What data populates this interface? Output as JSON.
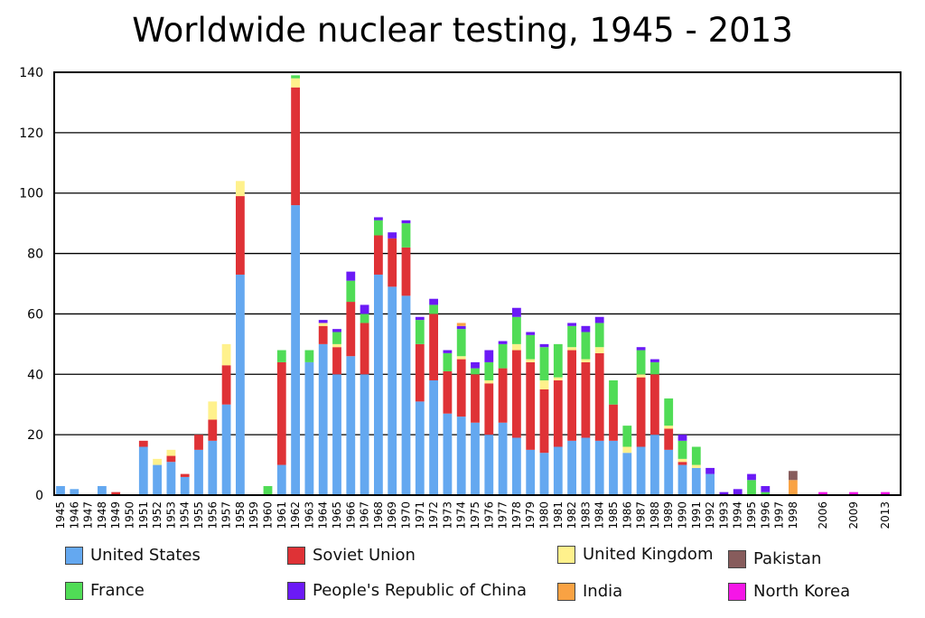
{
  "chart_data": {
    "type": "bar",
    "stacked": true,
    "title": "Worldwide nuclear testing, 1945 - 2013",
    "xlabel": "",
    "ylabel": "",
    "ylim": [
      0,
      140
    ],
    "yticks": [
      0,
      20,
      40,
      60,
      80,
      100,
      120,
      140
    ],
    "grid": true,
    "legend_position": "bottom",
    "categories": [
      "1945",
      "1946",
      "1947",
      "1948",
      "1949",
      "1950",
      "1951",
      "1952",
      "1953",
      "1954",
      "1955",
      "1956",
      "1957",
      "1958",
      "1959",
      "1960",
      "1961",
      "1962",
      "1963",
      "1964",
      "1965",
      "1966",
      "1967",
      "1968",
      "1969",
      "1970",
      "1971",
      "1972",
      "1973",
      "1974",
      "1975",
      "1976",
      "1977",
      "1978",
      "1979",
      "1980",
      "1981",
      "1982",
      "1983",
      "1984",
      "1985",
      "1986",
      "1987",
      "1988",
      "1989",
      "1990",
      "1991",
      "1992",
      "1993",
      "1994",
      "1995",
      "1996",
      "1997",
      "1998",
      "2006",
      "2009",
      "2013"
    ],
    "series": [
      {
        "name": "United States",
        "color": "#64a8f0",
        "values": [
          3,
          2,
          0,
          3,
          0,
          0,
          16,
          10,
          11,
          6,
          15,
          18,
          30,
          73,
          0,
          0,
          10,
          96,
          44,
          50,
          40,
          46,
          40,
          73,
          69,
          66,
          31,
          38,
          27,
          26,
          24,
          20,
          24,
          19,
          15,
          14,
          16,
          18,
          19,
          18,
          18,
          14,
          16,
          20,
          15,
          10,
          9,
          7,
          0,
          0,
          0,
          0,
          0,
          0,
          0,
          0,
          0
        ]
      },
      {
        "name": "Soviet Union",
        "color": "#df3236",
        "values": [
          0,
          0,
          0,
          0,
          1,
          0,
          2,
          0,
          2,
          1,
          5,
          7,
          13,
          26,
          0,
          0,
          34,
          39,
          0,
          6,
          9,
          18,
          17,
          13,
          16,
          16,
          19,
          22,
          14,
          19,
          16,
          17,
          18,
          29,
          29,
          21,
          22,
          30,
          25,
          29,
          12,
          0,
          23,
          20,
          7,
          1,
          0,
          0,
          0,
          0,
          0,
          0,
          0,
          0,
          0,
          0,
          0
        ]
      },
      {
        "name": "United Kingdom",
        "color": "#fff18c",
        "values": [
          0,
          0,
          0,
          0,
          0,
          0,
          0,
          2,
          2,
          0,
          0,
          6,
          7,
          5,
          0,
          0,
          0,
          3,
          0,
          1,
          1,
          0,
          0,
          0,
          0,
          0,
          0,
          0,
          0,
          1,
          0,
          1,
          0,
          2,
          1,
          3,
          1,
          1,
          1,
          2,
          0,
          2,
          1,
          0,
          1,
          1,
          1,
          0,
          0,
          0,
          0,
          0,
          0,
          0,
          0,
          0,
          0
        ]
      },
      {
        "name": "France",
        "color": "#50dc56",
        "values": [
          0,
          0,
          0,
          0,
          0,
          0,
          0,
          0,
          0,
          0,
          0,
          0,
          0,
          0,
          0,
          3,
          4,
          1,
          4,
          0,
          4,
          7,
          3,
          5,
          0,
          8,
          8,
          3,
          6,
          9,
          2,
          6,
          8,
          9,
          8,
          11,
          11,
          7,
          9,
          8,
          8,
          7,
          8,
          4,
          9,
          6,
          6,
          0,
          0,
          0,
          5,
          1,
          0,
          0,
          0,
          0,
          0
        ]
      },
      {
        "name": "People's Republic of China",
        "color": "#6b1af6",
        "values": [
          0,
          0,
          0,
          0,
          0,
          0,
          0,
          0,
          0,
          0,
          0,
          0,
          0,
          0,
          0,
          0,
          0,
          0,
          0,
          1,
          1,
          3,
          3,
          1,
          2,
          1,
          1,
          2,
          1,
          1,
          2,
          4,
          1,
          3,
          1,
          1,
          0,
          1,
          2,
          2,
          0,
          0,
          1,
          1,
          0,
          2,
          0,
          2,
          1,
          2,
          2,
          2,
          0,
          0,
          0,
          0,
          0
        ]
      },
      {
        "name": "India",
        "color": "#f9a243",
        "values": [
          0,
          0,
          0,
          0,
          0,
          0,
          0,
          0,
          0,
          0,
          0,
          0,
          0,
          0,
          0,
          0,
          0,
          0,
          0,
          0,
          0,
          0,
          0,
          0,
          0,
          0,
          0,
          0,
          0,
          1,
          0,
          0,
          0,
          0,
          0,
          0,
          0,
          0,
          0,
          0,
          0,
          0,
          0,
          0,
          0,
          0,
          0,
          0,
          0,
          0,
          0,
          0,
          0,
          5,
          0,
          0,
          0
        ]
      },
      {
        "name": "Pakistan",
        "color": "#875c5c",
        "values": [
          0,
          0,
          0,
          0,
          0,
          0,
          0,
          0,
          0,
          0,
          0,
          0,
          0,
          0,
          0,
          0,
          0,
          0,
          0,
          0,
          0,
          0,
          0,
          0,
          0,
          0,
          0,
          0,
          0,
          0,
          0,
          0,
          0,
          0,
          0,
          0,
          0,
          0,
          0,
          0,
          0,
          0,
          0,
          0,
          0,
          0,
          0,
          0,
          0,
          0,
          0,
          0,
          0,
          3,
          0,
          0,
          0
        ]
      },
      {
        "name": "North Korea",
        "color": "#f516e7",
        "values": [
          0,
          0,
          0,
          0,
          0,
          0,
          0,
          0,
          0,
          0,
          0,
          0,
          0,
          0,
          0,
          0,
          0,
          0,
          0,
          0,
          0,
          0,
          0,
          0,
          0,
          0,
          0,
          0,
          0,
          0,
          0,
          0,
          0,
          0,
          0,
          0,
          0,
          0,
          0,
          0,
          0,
          0,
          0,
          0,
          0,
          0,
          0,
          0,
          0,
          0,
          0,
          0,
          0,
          0,
          1,
          1,
          1
        ]
      }
    ]
  }
}
